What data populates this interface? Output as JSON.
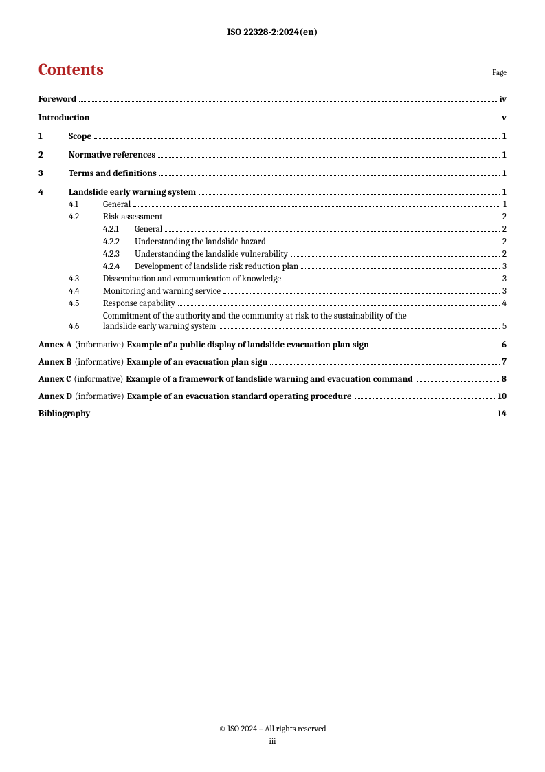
{
  "header": {
    "doc_id": "ISO 22328-2:2024(en)"
  },
  "contents": {
    "title": "Contents",
    "page_label": "Page"
  },
  "toc": {
    "foreword": {
      "title": "Foreword",
      "page": "iv"
    },
    "introduction": {
      "title": "Introduction",
      "page": "v"
    },
    "s1": {
      "num": "1",
      "title": "Scope",
      "page": "1"
    },
    "s2": {
      "num": "2",
      "title": "Normative references",
      "page": "1"
    },
    "s3": {
      "num": "3",
      "title": "Terms and definitions",
      "page": "1"
    },
    "s4": {
      "num": "4",
      "title": "Landslide early warning system",
      "page": "1"
    },
    "s4_1": {
      "num": "4.1",
      "title": "General",
      "page": "1"
    },
    "s4_2": {
      "num": "4.2",
      "title": "Risk assessment",
      "page": "2"
    },
    "s4_2_1": {
      "num": "4.2.1",
      "title": "General",
      "page": "2"
    },
    "s4_2_2": {
      "num": "4.2.2",
      "title": "Understanding the landslide hazard",
      "page": "2"
    },
    "s4_2_3": {
      "num": "4.2.3",
      "title": "Understanding the landslide vulnerability",
      "page": "2"
    },
    "s4_2_4": {
      "num": "4.2.4",
      "title": "Development of landslide risk reduction plan",
      "page": "3"
    },
    "s4_3": {
      "num": "4.3",
      "title": "Dissemination and communication of knowledge",
      "page": "3"
    },
    "s4_4": {
      "num": "4.4",
      "title": "Monitoring and warning service",
      "page": "3"
    },
    "s4_5": {
      "num": "4.5",
      "title": "Response capability",
      "page": "4"
    },
    "s4_6": {
      "num": "4.6",
      "line1": "Commitment of the authority and the community at risk to the sustainability of the",
      "line2": "landslide early warning system",
      "page": "5"
    },
    "annexA": {
      "label": "Annex A",
      "info": "(informative)",
      "title": "Example of a public display of landslide evacuation plan sign",
      "page": "6"
    },
    "annexB": {
      "label": "Annex B",
      "info": "(informative)",
      "title": "Example of an evacuation plan sign",
      "page": "7"
    },
    "annexC": {
      "label": "Annex C",
      "info": "(informative)",
      "title": "Example of a framework of landslide warning and evacuation command",
      "page": "8"
    },
    "annexD": {
      "label": "Annex D",
      "info": "(informative)",
      "title": "Example of an evacuation standard operating procedure",
      "page": "10"
    },
    "bibliography": {
      "title": "Bibliography",
      "page": "14"
    }
  },
  "footer": {
    "copyright": "© ISO 2024 – All rights reserved",
    "page_number": "iii"
  }
}
